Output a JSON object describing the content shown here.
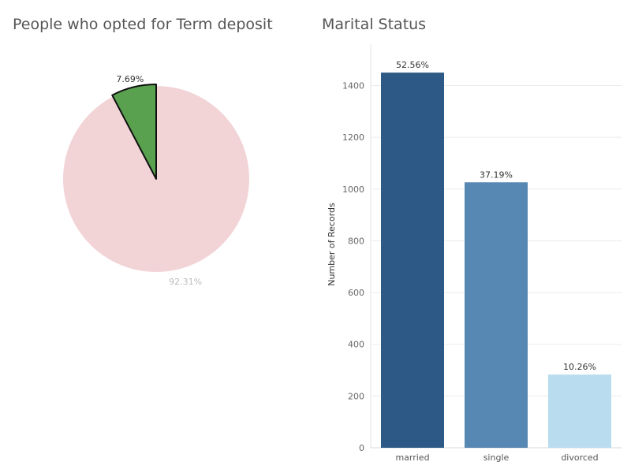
{
  "chart_data": [
    {
      "type": "pie",
      "title": "People who opted for Term deposit",
      "slices": [
        {
          "value": 7.69,
          "label": "7.69%",
          "color": "#59a14f",
          "highlighted": true
        },
        {
          "value": 92.31,
          "label": "92.31%",
          "color": "#f2d4d7",
          "highlighted": false
        }
      ]
    },
    {
      "type": "bar",
      "title": "Marital Status",
      "categories": [
        "married",
        "single",
        "divorced"
      ],
      "values": [
        1450,
        1026,
        283
      ],
      "data_labels": [
        "52.56%",
        "37.19%",
        "10.26%"
      ],
      "colors": [
        "#2c5985",
        "#5787b3",
        "#b9dcef"
      ],
      "xlabel": "",
      "ylabel": "Number of Records",
      "ylim": [
        0,
        1560
      ],
      "yticks": [
        0,
        200,
        400,
        600,
        800,
        1000,
        1200,
        1400
      ],
      "grid": true
    }
  ]
}
